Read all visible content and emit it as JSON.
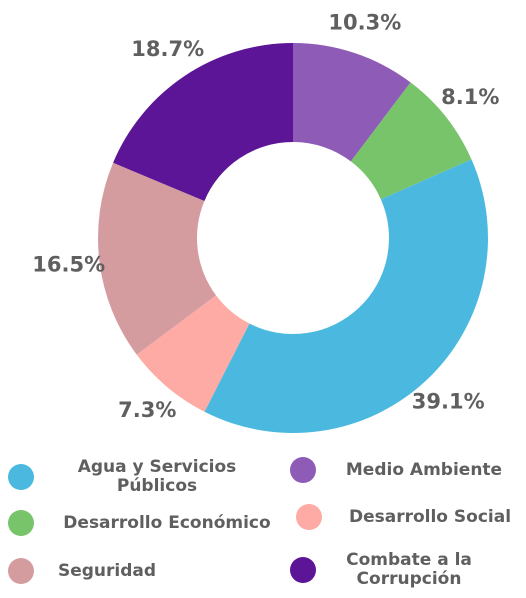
{
  "chart_data": {
    "type": "donut",
    "categories": [
      "Medio Ambiente",
      "Desarrollo Económico",
      "Agua y Servicios Públicos",
      "Desarrollo Social",
      "Seguridad",
      "Combate a la Corrupción"
    ],
    "values": [
      10.3,
      8.1,
      39.1,
      7.3,
      16.5,
      18.7
    ],
    "value_labels": [
      "10.3%",
      "8.1%",
      "39.1%",
      "7.3%",
      "16.5%",
      "18.7%"
    ],
    "colors": [
      "#8e5bb7",
      "#77c46a",
      "#4bb9df",
      "#fdaba4",
      "#d59ca0",
      "#5c1597"
    ]
  }
}
